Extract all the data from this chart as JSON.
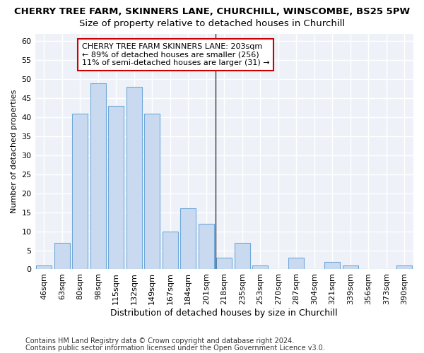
{
  "title": "CHERRY TREE FARM, SKINNERS LANE, CHURCHILL, WINSCOMBE, BS25 5PW",
  "subtitle": "Size of property relative to detached houses in Churchill",
  "xlabel": "Distribution of detached houses by size in Churchill",
  "ylabel": "Number of detached properties",
  "categories": [
    "46sqm",
    "63sqm",
    "80sqm",
    "98sqm",
    "115sqm",
    "132sqm",
    "149sqm",
    "167sqm",
    "184sqm",
    "201sqm",
    "218sqm",
    "235sqm",
    "253sqm",
    "270sqm",
    "287sqm",
    "304sqm",
    "321sqm",
    "339sqm",
    "356sqm",
    "373sqm",
    "390sqm"
  ],
  "values": [
    1,
    7,
    41,
    49,
    43,
    48,
    41,
    10,
    16,
    12,
    3,
    7,
    1,
    0,
    3,
    0,
    2,
    1,
    0,
    0,
    1
  ],
  "bar_color": "#c9daf0",
  "bar_edge_color": "#6fa8d8",
  "vline_x_index": 9,
  "annotation_text": "CHERRY TREE FARM SKINNERS LANE: 203sqm\n← 89% of detached houses are smaller (256)\n11% of semi-detached houses are larger (31) →",
  "annotation_box_color": "#ffffff",
  "annotation_box_edge_color": "#cc0000",
  "ylim": [
    0,
    62
  ],
  "yticks": [
    0,
    5,
    10,
    15,
    20,
    25,
    30,
    35,
    40,
    45,
    50,
    55,
    60
  ],
  "footer1": "Contains HM Land Registry data © Crown copyright and database right 2024.",
  "footer2": "Contains public sector information licensed under the Open Government Licence v3.0.",
  "bg_color": "#ffffff",
  "plot_bg_color": "#eef2f8",
  "grid_color": "#ffffff",
  "title_fontsize": 9.5,
  "subtitle_fontsize": 9.5,
  "xlabel_fontsize": 9,
  "ylabel_fontsize": 8,
  "tick_fontsize": 8,
  "annotation_fontsize": 8,
  "footer_fontsize": 7
}
